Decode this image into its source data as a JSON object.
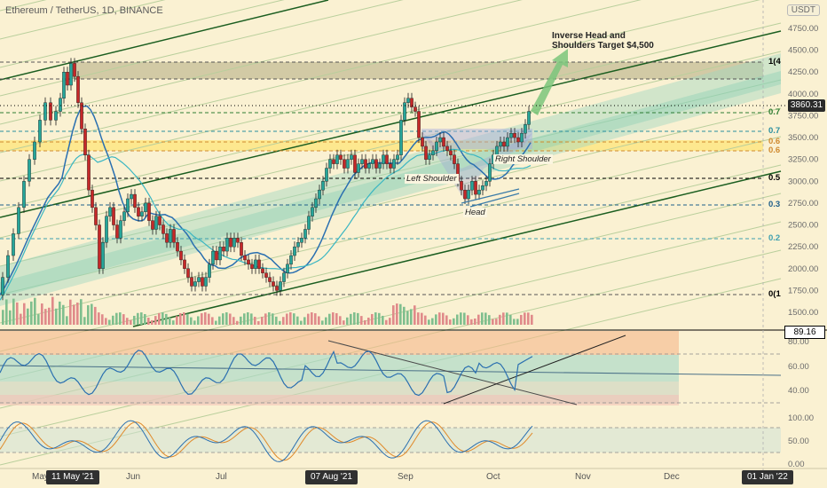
{
  "header": {
    "symbol_title": "Ethereum / TetherUS, 1D, BINANCE",
    "currency_button": "USDT"
  },
  "price_axis": {
    "ticks": [
      "4750.00",
      "4500.00",
      "4250.00",
      "4000.00",
      "3750.00",
      "3500.00",
      "3250.00",
      "3000.00",
      "2750.00",
      "2500.00",
      "2250.00",
      "2000.00",
      "1750.00",
      "1500.00"
    ],
    "current_price": "3860.31"
  },
  "fib_levels": [
    {
      "label": "1(4",
      "color": "#000000"
    },
    {
      "label": "0.7",
      "color": "#2e7d32"
    },
    {
      "label": "0.7",
      "color": "#2a8ea0"
    },
    {
      "label": "0.6",
      "color": "#d08a30"
    },
    {
      "label": "0.6",
      "color": "#d08a30"
    },
    {
      "label": "0.5",
      "color": "#000000"
    },
    {
      "label": "0.3",
      "color": "#1f5f8a"
    },
    {
      "label": "0.2",
      "color": "#3fa0b0"
    },
    {
      "label": "0(1",
      "color": "#000000"
    }
  ],
  "annotations": {
    "left_shoulder": "Left Shoulder",
    "head": "Head",
    "right_shoulder": "Right Shoulder",
    "target": "Inverse Head and\nShoulders Target $4,500"
  },
  "rsi_panel": {
    "ticks": [
      "80.00",
      "60.00",
      "40.00"
    ],
    "value_badge": "89.16"
  },
  "stoch_panel": {
    "ticks": [
      "100.00",
      "50.00",
      "0.00"
    ]
  },
  "time_axis": {
    "labels": [
      {
        "text": "May",
        "highlight": false
      },
      {
        "text": "11 May '21",
        "highlight": true
      },
      {
        "text": "Jun",
        "highlight": false
      },
      {
        "text": "Jul",
        "highlight": false
      },
      {
        "text": "07 Aug '21",
        "highlight": true
      },
      {
        "text": "Sep",
        "highlight": false
      },
      {
        "text": "Oct",
        "highlight": false
      },
      {
        "text": "Nov",
        "highlight": false
      },
      {
        "text": "Dec",
        "highlight": false
      },
      {
        "text": "01 Jan '22",
        "highlight": true
      }
    ]
  },
  "colors": {
    "background": "#faf1d2",
    "candle_up": "#26a69a",
    "candle_down": "#c62828",
    "channel": "#1b5e20",
    "rsi_line": "#2a6fb0",
    "stoch_k": "#2a6fb0",
    "stoch_d": "#e08a2a",
    "target_arrow": "#7bc67b"
  },
  "chart_data": {
    "type": "candlestick",
    "price_series": [
      [
        0,
        1700
      ],
      [
        6,
        1900
      ],
      [
        12,
        2150
      ],
      [
        18,
        2400
      ],
      [
        24,
        2700
      ],
      [
        30,
        3000
      ],
      [
        36,
        3250
      ],
      [
        42,
        3450
      ],
      [
        48,
        3700
      ],
      [
        54,
        3900
      ],
      [
        60,
        3700
      ],
      [
        66,
        3800
      ],
      [
        70,
        3950
      ],
      [
        74,
        4250
      ],
      [
        78,
        4100
      ],
      [
        82,
        4350
      ],
      [
        86,
        4200
      ],
      [
        90,
        3900
      ],
      [
        94,
        3600
      ],
      [
        98,
        3300
      ],
      [
        102,
        2900
      ],
      [
        106,
        2700
      ],
      [
        110,
        2500
      ],
      [
        114,
        2000
      ],
      [
        118,
        2300
      ],
      [
        122,
        2600
      ],
      [
        126,
        2700
      ],
      [
        130,
        2500
      ],
      [
        134,
        2350
      ],
      [
        138,
        2550
      ],
      [
        142,
        2650
      ],
      [
        146,
        2800
      ],
      [
        150,
        2850
      ],
      [
        154,
        2700
      ],
      [
        158,
        2600
      ],
      [
        162,
        2650
      ],
      [
        166,
        2750
      ],
      [
        170,
        2550
      ],
      [
        174,
        2450
      ],
      [
        178,
        2600
      ],
      [
        182,
        2500
      ],
      [
        186,
        2400
      ],
      [
        190,
        2300
      ],
      [
        194,
        2450
      ],
      [
        198,
        2300
      ],
      [
        202,
        2200
      ],
      [
        206,
        2100
      ],
      [
        210,
        2000
      ],
      [
        214,
        1900
      ],
      [
        218,
        1800
      ],
      [
        222,
        1850
      ],
      [
        226,
        1900
      ],
      [
        230,
        1800
      ],
      [
        234,
        1900
      ],
      [
        238,
        2050
      ],
      [
        242,
        2200
      ],
      [
        246,
        2100
      ],
      [
        250,
        2250
      ],
      [
        254,
        2200
      ],
      [
        258,
        2350
      ],
      [
        262,
        2250
      ],
      [
        266,
        2350
      ],
      [
        270,
        2300
      ],
      [
        274,
        2150
      ],
      [
        278,
        2100
      ],
      [
        282,
        2050
      ],
      [
        286,
        2000
      ],
      [
        290,
        2100
      ],
      [
        294,
        2000
      ],
      [
        298,
        1950
      ],
      [
        302,
        1900
      ],
      [
        306,
        1850
      ],
      [
        310,
        1800
      ],
      [
        314,
        1750
      ],
      [
        318,
        1850
      ],
      [
        322,
        1950
      ],
      [
        326,
        2050
      ],
      [
        330,
        2150
      ],
      [
        334,
        2250
      ],
      [
        338,
        2300
      ],
      [
        342,
        2350
      ],
      [
        346,
        2450
      ],
      [
        350,
        2600
      ],
      [
        354,
        2700
      ],
      [
        358,
        2800
      ],
      [
        362,
        2900
      ],
      [
        366,
        3000
      ],
      [
        370,
        3150
      ],
      [
        374,
        3250
      ],
      [
        378,
        3200
      ],
      [
        382,
        3300
      ],
      [
        386,
        3250
      ],
      [
        390,
        3150
      ],
      [
        394,
        3250
      ],
      [
        398,
        3300
      ],
      [
        402,
        3100
      ],
      [
        406,
        3200
      ],
      [
        410,
        3250
      ],
      [
        414,
        3150
      ],
      [
        418,
        3200
      ],
      [
        422,
        3250
      ],
      [
        426,
        3150
      ],
      [
        430,
        3200
      ],
      [
        434,
        3300
      ],
      [
        438,
        3200
      ],
      [
        442,
        3150
      ],
      [
        446,
        3250
      ],
      [
        450,
        3300
      ],
      [
        454,
        3700
      ],
      [
        458,
        3900
      ],
      [
        462,
        3950
      ],
      [
        466,
        3850
      ],
      [
        470,
        3800
      ],
      [
        474,
        3500
      ],
      [
        478,
        3400
      ],
      [
        482,
        3250
      ],
      [
        486,
        3300
      ],
      [
        490,
        3350
      ],
      [
        494,
        3450
      ],
      [
        498,
        3500
      ],
      [
        502,
        3400
      ],
      [
        506,
        3350
      ],
      [
        510,
        3300
      ],
      [
        514,
        3200
      ],
      [
        518,
        3000
      ],
      [
        522,
        2900
      ],
      [
        526,
        2800
      ],
      [
        530,
        2900
      ],
      [
        534,
        3000
      ],
      [
        538,
        2850
      ],
      [
        542,
        2900
      ],
      [
        546,
        2950
      ],
      [
        550,
        3000
      ],
      [
        554,
        3200
      ],
      [
        558,
        3300
      ],
      [
        562,
        3400
      ],
      [
        566,
        3450
      ],
      [
        570,
        3400
      ],
      [
        574,
        3500
      ],
      [
        578,
        3550
      ],
      [
        582,
        3500
      ],
      [
        586,
        3450
      ],
      [
        590,
        3550
      ],
      [
        594,
        3650
      ],
      [
        598,
        3800
      ]
    ],
    "annotation_text": [
      "Left Shoulder",
      "Head",
      "Right Shoulder",
      "Inverse Head and Shoulders Target $4,500"
    ]
  }
}
